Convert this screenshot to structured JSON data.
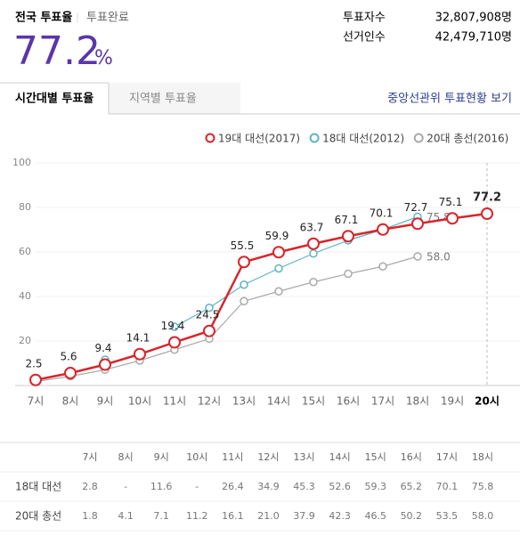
{
  "header": {
    "title": "전국 투표율",
    "status": "투표완료",
    "turnout": "77.2",
    "unit": "%",
    "stats": [
      {
        "label": "투표자수",
        "value": "32,807,908명"
      },
      {
        "label": "선거인수",
        "value": "42,479,710명"
      }
    ]
  },
  "tabs": [
    "시간대별 투표율",
    "지역별 투표율"
  ],
  "link": "중앙선관위 투표현황 보기",
  "chart_data": {
    "type": "line",
    "categories": [
      "7시",
      "8시",
      "9시",
      "10시",
      "11시",
      "12시",
      "13시",
      "14시",
      "15시",
      "16시",
      "17시",
      "18시",
      "19시",
      "20시"
    ],
    "series": [
      {
        "name": "19대 대선(2017)",
        "color": "#d8262b",
        "values": [
          2.5,
          5.6,
          9.4,
          14.1,
          19.4,
          24.5,
          55.5,
          59.9,
          63.7,
          67.1,
          70.1,
          72.7,
          75.1,
          77.2
        ],
        "value_labels": [
          "2.5",
          "5.6",
          "9.4",
          "14.1",
          "19.4",
          "24.5",
          "55.5",
          "59.9",
          "63.7",
          "67.1",
          "70.1",
          "72.7",
          "75.1",
          "77.2"
        ]
      },
      {
        "name": "18대 대선(2012)",
        "color": "#5fb3c5",
        "values": [
          2.8,
          null,
          11.6,
          null,
          26.4,
          34.9,
          45.3,
          52.6,
          59.3,
          65.2,
          70.1,
          75.8,
          null,
          null
        ],
        "value_labels": [
          null,
          null,
          null,
          null,
          null,
          null,
          null,
          null,
          null,
          null,
          null,
          "75.8",
          null,
          null
        ]
      },
      {
        "name": "20대 총선(2016)",
        "color": "#aaaaaa",
        "values": [
          1.8,
          4.1,
          7.1,
          11.2,
          16.1,
          21.0,
          37.9,
          42.3,
          46.5,
          50.2,
          53.5,
          58.0,
          null,
          null
        ],
        "value_labels": [
          null,
          null,
          null,
          null,
          null,
          null,
          null,
          null,
          null,
          null,
          null,
          "58.0",
          null,
          null
        ]
      }
    ],
    "ylim": [
      0,
      100
    ],
    "yticks": [
      20,
      40,
      60,
      80,
      100
    ],
    "grid": true,
    "legend": "top-right"
  },
  "table": {
    "columns": [
      "7시",
      "8시",
      "9시",
      "10시",
      "11시",
      "12시",
      "13시",
      "14시",
      "15시",
      "16시",
      "17시",
      "18시"
    ],
    "rows": [
      [
        "18대 대선",
        "2.8",
        "-",
        "11.6",
        "-",
        "26.4",
        "34.9",
        "45.3",
        "52.6",
        "59.3",
        "65.2",
        "70.1",
        "75.8"
      ],
      [
        "20대 총선",
        "1.8",
        "4.1",
        "7.1",
        "11.2",
        "16.1",
        "21.0",
        "37.9",
        "42.3",
        "46.5",
        "50.2",
        "53.5",
        "58.0"
      ]
    ]
  }
}
